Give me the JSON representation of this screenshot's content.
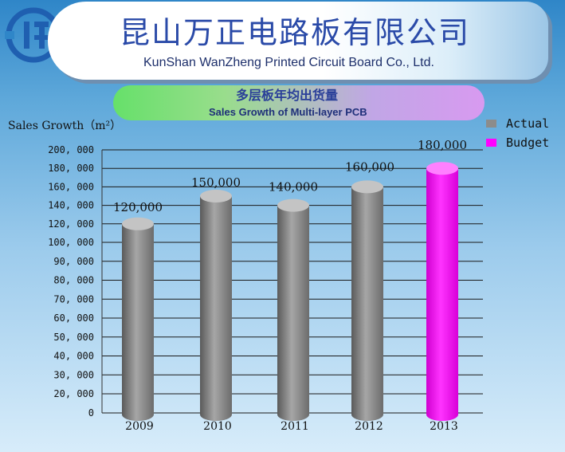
{
  "header": {
    "title_cn": "昆山万正电路板有限公司",
    "title_en": "KunShan  WanZheng Printed  Circuit  Board  Co., Ltd."
  },
  "chart_data": {
    "type": "bar",
    "title": "多层板年均出货量",
    "subtitle": "Sales Growth of Multi-layer PCB",
    "ylabel": "Sales Growth（m²）",
    "xlabel": "",
    "categories": [
      "2009",
      "2010",
      "2011",
      "2012",
      "2013"
    ],
    "values": [
      120000,
      150000,
      140000,
      160000,
      180000
    ],
    "value_labels": [
      "120,000",
      "150,000",
      "140,000",
      "160,000",
      "180,000"
    ],
    "series_type": [
      "Actual",
      "Actual",
      "Actual",
      "Actual",
      "Budget"
    ],
    "ylim": [
      0,
      200000
    ],
    "yticks": [
      0,
      20000,
      30000,
      40000,
      50000,
      60000,
      70000,
      80000,
      90000,
      100000,
      120000,
      140000,
      160000,
      180000,
      200000
    ],
    "ytick_labels": [
      "0",
      "20, 000",
      "30, 000",
      "40, 000",
      "50, 000",
      "60, 000",
      "70, 000",
      "80, 000",
      "90, 000",
      "100, 000",
      "120, 000",
      "140, 000",
      "160, 000",
      "180, 000",
      "200, 000"
    ],
    "grid": true,
    "legend": [
      {
        "name": "Actual",
        "color": "#8c8c8c"
      },
      {
        "name": "Budget",
        "color": "#ff00ff"
      }
    ],
    "legend_position": "top-right"
  }
}
